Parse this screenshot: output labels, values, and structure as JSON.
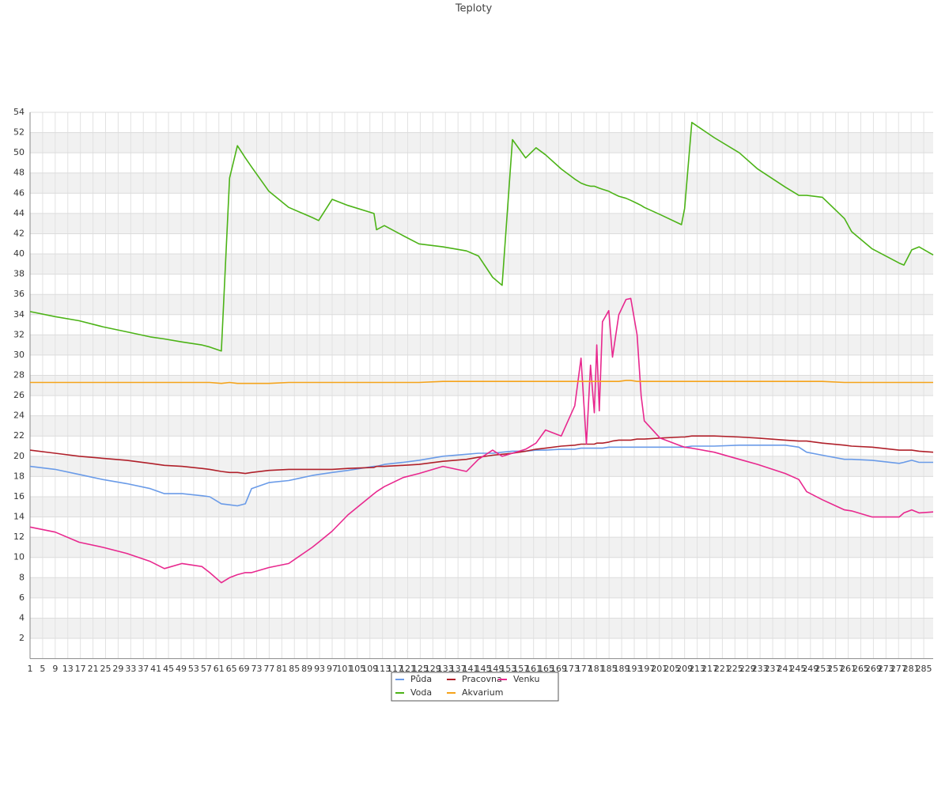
{
  "chart_data": {
    "type": "line",
    "title": "Teploty",
    "x": [
      1,
      9.0,
      16.6,
      24.1,
      31.7,
      39.2,
      43.7,
      49.3,
      55.6,
      58.1,
      61.8,
      64.4,
      66.9,
      69.4,
      71.4,
      76.9,
      83.2,
      90.7,
      92.7,
      97.0,
      102.0,
      110.3,
      111.1,
      113.6,
      119.6,
      124.6,
      132.2,
      139.7,
      143.5,
      148.0,
      151.0,
      154.3,
      158.5,
      161.8,
      164.8,
      169.8,
      174.1,
      176.1,
      177.8,
      179.1,
      180.3,
      181.1,
      181.9,
      182.9,
      184.9,
      186.1,
      188.1,
      190.4,
      191.9,
      193.9,
      195.2,
      196.2,
      201.2,
      208.0,
      209.0,
      211.3,
      218.4,
      226.4,
      232.2,
      241.0,
      245.3,
      247.8,
      252.8,
      259.8,
      262.1,
      268.6,
      277.2,
      278.7,
      281.2,
      283.5,
      288
    ],
    "xlim": [
      1,
      288
    ],
    "xticks": [
      1,
      5,
      9,
      13,
      17,
      21,
      25,
      29,
      33,
      37,
      41,
      45,
      49,
      53,
      57,
      61,
      65,
      69,
      73,
      77,
      81,
      85,
      89,
      93,
      97,
      101,
      105,
      109,
      113,
      117,
      121,
      125,
      129,
      133,
      137,
      141,
      145,
      149,
      153,
      157,
      161,
      165,
      169,
      173,
      177,
      181,
      185,
      189,
      193,
      197,
      201,
      205,
      209,
      213,
      217,
      221,
      225,
      229,
      233,
      237,
      241,
      245,
      249,
      253,
      257,
      261,
      265,
      269,
      273,
      277,
      281,
      285
    ],
    "ylim": [
      0,
      54
    ],
    "yticks": [
      2,
      4,
      6,
      8,
      10,
      12,
      14,
      16,
      18,
      20,
      22,
      24,
      26,
      28,
      30,
      32,
      34,
      36,
      38,
      40,
      42,
      44,
      46,
      48,
      50,
      52,
      54
    ],
    "grid": true,
    "grid_bands": true,
    "legend": "bottom",
    "series": [
      {
        "name": "Půda",
        "color": "#6a9be8",
        "values": [
          19.0,
          18.7,
          18.2,
          17.7,
          17.3,
          16.8,
          16.3,
          16.3,
          16.1,
          16.0,
          15.3,
          15.2,
          15.1,
          15.3,
          16.8,
          17.4,
          17.6,
          18.1,
          18.2,
          18.4,
          18.6,
          19.0,
          19.0,
          19.2,
          19.4,
          19.6,
          20.0,
          20.2,
          20.3,
          20.3,
          20.4,
          20.5,
          20.5,
          20.6,
          20.6,
          20.7,
          20.7,
          20.8,
          20.8,
          20.8,
          20.8,
          20.8,
          20.8,
          20.8,
          20.9,
          20.9,
          20.9,
          20.9,
          20.9,
          20.9,
          20.9,
          20.9,
          20.9,
          20.9,
          20.9,
          21.0,
          21.0,
          21.1,
          21.1,
          21.1,
          20.9,
          20.4,
          20.1,
          19.7,
          19.7,
          19.6,
          19.3,
          19.4,
          19.6,
          19.4,
          19.4
        ]
      },
      {
        "name": "Pracovna",
        "color": "#b0202a",
        "values": [
          20.6,
          20.3,
          20.0,
          19.8,
          19.6,
          19.3,
          19.1,
          19.0,
          18.8,
          18.7,
          18.5,
          18.4,
          18.4,
          18.3,
          18.4,
          18.6,
          18.7,
          18.7,
          18.7,
          18.7,
          18.8,
          18.9,
          19.0,
          19.0,
          19.1,
          19.2,
          19.5,
          19.7,
          19.9,
          20.1,
          20.2,
          20.3,
          20.5,
          20.7,
          20.8,
          21.0,
          21.1,
          21.2,
          21.2,
          21.2,
          21.2,
          21.3,
          21.3,
          21.3,
          21.4,
          21.5,
          21.6,
          21.6,
          21.6,
          21.7,
          21.7,
          21.7,
          21.8,
          21.9,
          21.9,
          22.0,
          22.0,
          21.9,
          21.8,
          21.6,
          21.5,
          21.5,
          21.3,
          21.1,
          21.0,
          20.9,
          20.6,
          20.6,
          20.6,
          20.5,
          20.4
        ]
      },
      {
        "name": "Venku",
        "color": "#e8288e",
        "values": [
          13.0,
          12.5,
          11.5,
          11.0,
          10.4,
          9.6,
          8.9,
          9.4,
          9.1,
          8.5,
          7.5,
          8.0,
          8.3,
          8.5,
          8.5,
          9.0,
          9.4,
          11.0,
          11.5,
          12.6,
          14.2,
          16.3,
          16.5,
          17.0,
          17.9,
          18.3,
          19.0,
          18.5,
          19.7,
          20.6,
          20.0,
          20.3,
          20.7,
          21.3,
          22.6,
          22.0,
          25.0,
          29.7,
          21.2,
          29.0,
          24.3,
          31.0,
          24.5,
          33.3,
          34.4,
          29.8,
          34.0,
          35.5,
          35.6,
          32.0,
          26.0,
          23.5,
          21.8,
          21.0,
          20.9,
          20.8,
          20.4,
          19.7,
          19.2,
          18.3,
          17.7,
          16.5,
          15.7,
          14.7,
          14.6,
          14.0,
          14.0,
          14.4,
          14.7,
          14.4,
          14.5
        ]
      },
      {
        "name": "Voda",
        "color": "#4cb317",
        "values": [
          34.3,
          33.8,
          33.4,
          32.8,
          32.3,
          31.8,
          31.6,
          31.3,
          31.0,
          30.8,
          30.4,
          47.5,
          50.7,
          49.5,
          48.6,
          46.2,
          44.6,
          43.6,
          43.3,
          45.4,
          44.8,
          44.0,
          42.4,
          42.8,
          41.8,
          41.0,
          40.7,
          40.3,
          39.8,
          37.7,
          36.9,
          51.3,
          49.5,
          50.5,
          49.8,
          48.4,
          47.4,
          47.0,
          46.8,
          46.7,
          46.7,
          46.6,
          46.5,
          46.4,
          46.2,
          46.0,
          45.7,
          45.5,
          45.3,
          45.0,
          44.8,
          44.6,
          43.9,
          42.9,
          44.5,
          53.0,
          51.5,
          50.0,
          48.4,
          46.6,
          45.8,
          45.8,
          45.6,
          43.5,
          42.2,
          40.5,
          39.1,
          38.9,
          40.4,
          40.7,
          39.9
        ]
      },
      {
        "name": "Akvarium",
        "color": "#f5a31a",
        "values": [
          27.3,
          27.3,
          27.3,
          27.3,
          27.3,
          27.3,
          27.3,
          27.3,
          27.3,
          27.3,
          27.2,
          27.3,
          27.2,
          27.2,
          27.2,
          27.2,
          27.3,
          27.3,
          27.3,
          27.3,
          27.3,
          27.3,
          27.3,
          27.3,
          27.3,
          27.3,
          27.4,
          27.4,
          27.4,
          27.4,
          27.4,
          27.4,
          27.4,
          27.4,
          27.4,
          27.4,
          27.4,
          27.4,
          27.4,
          27.4,
          27.4,
          27.4,
          27.4,
          27.4,
          27.4,
          27.4,
          27.4,
          27.5,
          27.5,
          27.4,
          27.4,
          27.4,
          27.4,
          27.4,
          27.4,
          27.4,
          27.4,
          27.4,
          27.4,
          27.4,
          27.4,
          27.4,
          27.4,
          27.3,
          27.3,
          27.3,
          27.3,
          27.3,
          27.3,
          27.3,
          27.3
        ]
      }
    ]
  }
}
